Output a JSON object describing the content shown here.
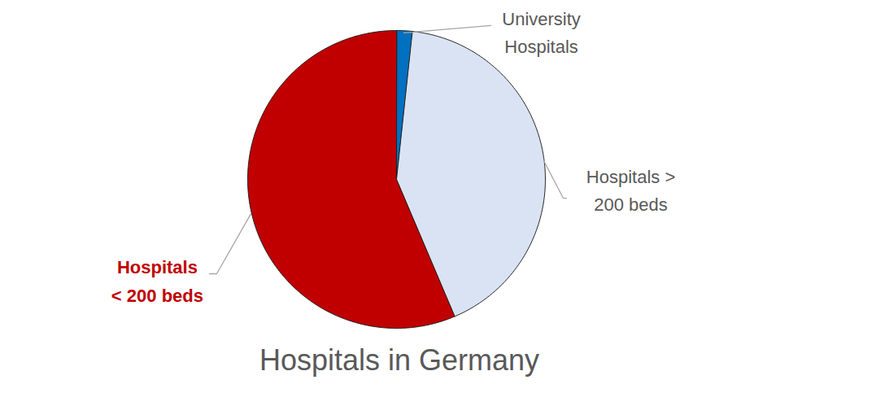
{
  "chart_data": {
    "type": "pie",
    "title": "Hospitals in Germany",
    "categories": [
      "University Hospitals",
      "Hospitals > 200 beds",
      "Hospitals < 200 beds"
    ],
    "values": [
      1.7,
      41.9,
      56.4
    ],
    "colors": [
      "#0070c0",
      "#dae3f3",
      "#c00000"
    ]
  }
}
